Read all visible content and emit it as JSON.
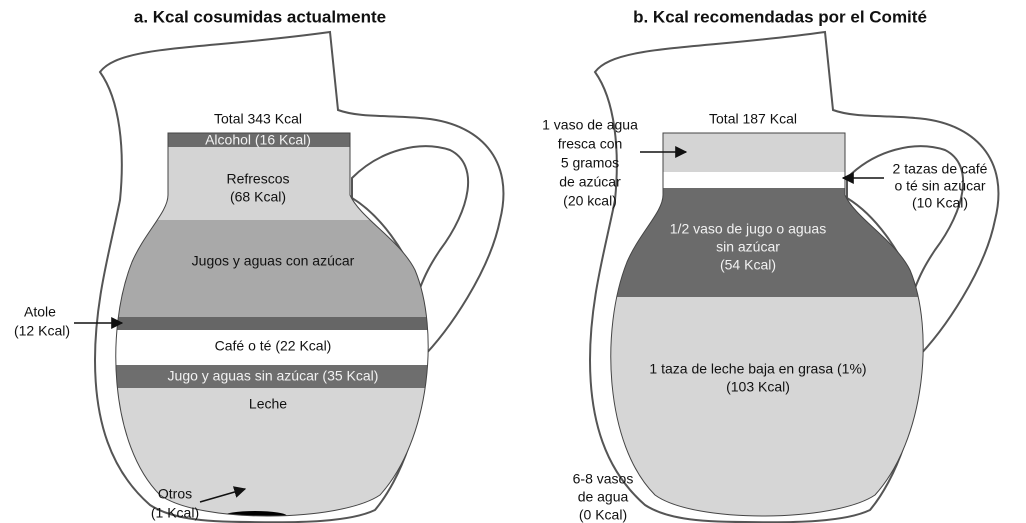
{
  "panels": [
    {
      "title": "a. Kcal cosumidas actualmente",
      "total": "Total 343 Kcal",
      "sections": [
        {
          "lines": [
            "Alcohol (16 Kcal)"
          ]
        },
        {
          "lines": [
            "Refrescos",
            "(68 Kcal)"
          ]
        },
        {
          "lines": [
            "Jugos y aguas con azúcar"
          ]
        },
        {
          "lines": [
            "Atole",
            "(12 Kcal)"
          ]
        },
        {
          "lines": [
            "Café o té (22 Kcal)"
          ]
        },
        {
          "lines": [
            "Jugo y aguas sin azúcar (35 Kcal)"
          ]
        },
        {
          "lines": [
            "Leche"
          ]
        },
        {
          "lines": [
            "Otros",
            "(1 Kcal)"
          ]
        }
      ]
    },
    {
      "title": "b. Kcal recomendadas por el Comité",
      "total": "Total 187 Kcal",
      "sections": [
        {
          "lines": [
            "1 vaso de agua",
            "fresca con",
            "5 gramos",
            "de azúcar",
            "(20 kcal)"
          ]
        },
        {
          "lines": [
            "2 tazas de café",
            "o té sin azúcar",
            "(10 Kcal)"
          ]
        },
        {
          "lines": [
            "1/2 vaso de jugo o aguas",
            "sin azúcar",
            "(54 Kcal)"
          ]
        },
        {
          "lines": [
            "1 taza de leche baja en grasa (1%)",
            "(103 Kcal)"
          ]
        },
        {
          "lines": [
            "6-8 vasos",
            "de agua",
            "(0 Kcal)"
          ]
        }
      ]
    }
  ]
}
